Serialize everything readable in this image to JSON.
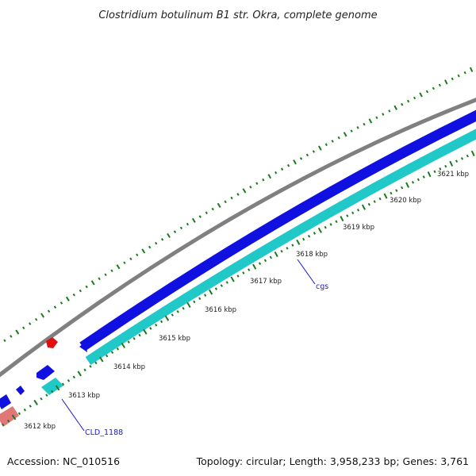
{
  "title": "Clostridium botulinum B1 str. Okra, complete genome",
  "footer": {
    "accession": "Accession: NC_010516",
    "summary": "Topology: circular; Length: 3,958,233 bp; Genes: 3,761"
  },
  "ticks": [
    {
      "label": "3612 kbp"
    },
    {
      "label": "3613 kbp"
    },
    {
      "label": "3614 kbp"
    },
    {
      "label": "3615 kbp"
    },
    {
      "label": "3616 kbp"
    },
    {
      "label": "3617 kbp"
    },
    {
      "label": "3618 kbp"
    },
    {
      "label": "3619 kbp"
    },
    {
      "label": "3620 kbp"
    },
    {
      "label": "3621 kbp"
    }
  ],
  "gene_labels": {
    "cld": "CLD_1188",
    "cgs": "cgs"
  },
  "colors": {
    "backbone": "#808080",
    "forward_gene": "#1010e0",
    "reverse_gene": "#20c8c8",
    "rna_gene": "#e07878",
    "small_feature": "#e01010",
    "dots": "#1a7a1a",
    "gene_label": "#1a1acc"
  }
}
